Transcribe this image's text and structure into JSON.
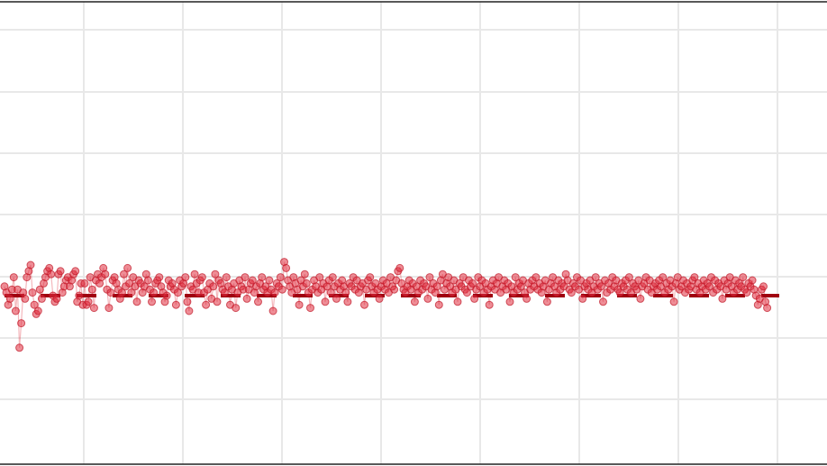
{
  "chart_data": {
    "type": "line",
    "title": "",
    "xlabel": "",
    "ylabel": "",
    "xlim": [
      -2,
      418
    ],
    "ylim": [
      -5,
      5
    ],
    "grid": true,
    "reference_line": {
      "y": 0.0,
      "style": "dashed",
      "color": "#a00010"
    },
    "series": [
      {
        "color": "#e03040",
        "marker": "circle",
        "values": [
          0.3,
          0.1,
          -0.3,
          -0.1,
          0.2,
          0.6,
          -0.5,
          0.2,
          -1.7,
          -0.9,
          0.1,
          -0.1,
          0.6,
          0.8,
          1.0,
          0.1,
          -0.3,
          -0.6,
          -0.5,
          0.2,
          -0.1,
          0.4,
          0.6,
          0.8,
          0.9,
          0.7,
          0.0,
          -0.2,
          -0.1,
          0.7,
          0.8,
          0.1,
          0.3,
          0.5,
          0.6,
          0.3,
          0.5,
          0.7,
          0.8,
          -0.2,
          0.0,
          0.4,
          -0.3,
          0.4,
          -0.3,
          -0.2,
          0.6,
          0.2,
          -0.4,
          0.5,
          0.7,
          0.4,
          0.6,
          0.9,
          0.7,
          0.2,
          -0.4,
          0.1,
          0.5,
          0.6,
          0.4,
          0.2,
          -0.1,
          0.1,
          0.7,
          0.3,
          0.9,
          0.4,
          0.1,
          0.6,
          0.3,
          -0.2,
          0.5,
          0.4,
          0.1,
          0.3,
          0.7,
          0.5,
          0.2,
          -0.2,
          0.1,
          0.4,
          0.5,
          0.6,
          0.3,
          0.1,
          -0.2,
          0.0,
          0.5,
          0.3,
          0.4,
          0.2,
          -0.3,
          0.1,
          0.5,
          0.3,
          0.4,
          0.6,
          -0.2,
          -0.5,
          0.3,
          0.2,
          0.7,
          0.4,
          0.1,
          0.5,
          0.6,
          0.1,
          -0.3,
          0.2,
          0.4,
          -0.1,
          0.3,
          0.7,
          -0.2,
          0.5,
          0.4,
          0.2,
          0.1,
          0.6,
          0.3,
          -0.3,
          0.2,
          0.4,
          -0.4,
          0.1,
          0.5,
          0.3,
          0.2,
          0.6,
          -0.1,
          0.2,
          0.4,
          0.5,
          0.1,
          0.3,
          -0.2,
          0.4,
          0.6,
          0.2,
          0.3,
          0.1,
          0.5,
          0.2,
          -0.5,
          0.1,
          0.4,
          0.3,
          0.6,
          0.2,
          1.1,
          0.9,
          0.5,
          0.3,
          0.1,
          0.6,
          0.4,
          0.2,
          -0.3,
          0.5,
          0.3,
          0.7,
          0.4,
          0.1,
          -0.4,
          0.2,
          0.5,
          0.3,
          0.1,
          0.6,
          0.2,
          0.4,
          -0.2,
          0.3,
          0.5,
          0.1,
          0.6,
          0.3,
          -0.1,
          0.4,
          0.2,
          0.5,
          0.3,
          0.1,
          -0.2,
          0.4,
          0.3,
          0.6,
          0.2,
          0.5,
          0.1,
          0.3,
          0.4,
          -0.3,
          0.2,
          0.5,
          0.6,
          0.3,
          0.1,
          0.4,
          0.2,
          -0.1,
          0.3,
          0.5,
          0.2,
          0.4,
          0.1,
          0.6,
          0.3,
          0.2,
          0.5,
          0.8,
          0.9,
          0.4,
          0.2,
          0.1,
          0.3,
          0.5,
          0.2,
          0.4,
          -0.2,
          0.3,
          0.1,
          0.5,
          0.2,
          0.4,
          0.3,
          -0.1,
          0.6,
          0.2,
          0.4,
          0.1,
          0.3,
          -0.3,
          0.5,
          0.7,
          0.2,
          0.4,
          0.6,
          0.3,
          0.1,
          0.5,
          0.2,
          -0.2,
          0.4,
          0.3,
          0.6,
          0.2,
          0.1,
          0.5,
          0.3,
          0.4,
          -0.1,
          0.2,
          0.6,
          0.3,
          0.5,
          0.1,
          0.4,
          0.2,
          -0.3,
          0.3,
          0.5,
          0.2,
          0.4,
          0.6,
          0.1,
          0.3,
          0.5,
          0.2,
          0.4,
          -0.2,
          0.3,
          0.1,
          0.6,
          0.2,
          0.4,
          0.3,
          0.5,
          0.1,
          -0.1,
          0.4,
          0.2,
          0.5,
          0.3,
          0.6,
          0.2,
          0.4,
          0.1,
          0.3,
          0.5,
          -0.2,
          0.2,
          0.4,
          0.6,
          0.3,
          0.1,
          0.5,
          0.2,
          0.4,
          0.3,
          0.7,
          0.5,
          0.2,
          0.1,
          0.4,
          0.3,
          0.6,
          0.2,
          0.5,
          -0.1,
          0.3,
          0.4,
          0.2,
          0.5,
          0.1,
          0.3,
          0.6,
          0.2,
          0.4,
          0.3,
          -0.2,
          0.5,
          0.1,
          0.4,
          0.2,
          0.6,
          0.3,
          0.5,
          0.2,
          0.1,
          0.4,
          0.3,
          0.5,
          0.2,
          0.6,
          0.1,
          0.4,
          0.3,
          0.2,
          0.5,
          -0.1,
          0.3,
          0.4,
          0.6,
          0.2,
          0.5,
          0.1,
          0.3,
          0.4,
          0.2,
          0.5,
          0.3,
          0.6,
          0.1,
          0.4,
          0.2,
          0.5,
          0.3,
          -0.2,
          0.4,
          0.6,
          0.2,
          0.3,
          0.5,
          0.1,
          0.4,
          0.2,
          0.3,
          0.5,
          0.6,
          0.2,
          0.4,
          0.1,
          0.3,
          0.5,
          0.2,
          0.4,
          0.3,
          0.6,
          0.1,
          0.5,
          0.2,
          0.4,
          0.3,
          -0.1,
          0.5,
          0.2,
          0.4,
          0.6,
          0.3,
          0.1,
          0.5,
          0.2,
          0.4,
          0.3,
          0.6,
          0.2,
          0.1,
          0.4,
          0.3,
          0.5,
          0.2,
          0.0,
          -0.3,
          -0.1,
          0.2,
          0.3,
          -0.2,
          -0.4
        ]
      }
    ]
  }
}
